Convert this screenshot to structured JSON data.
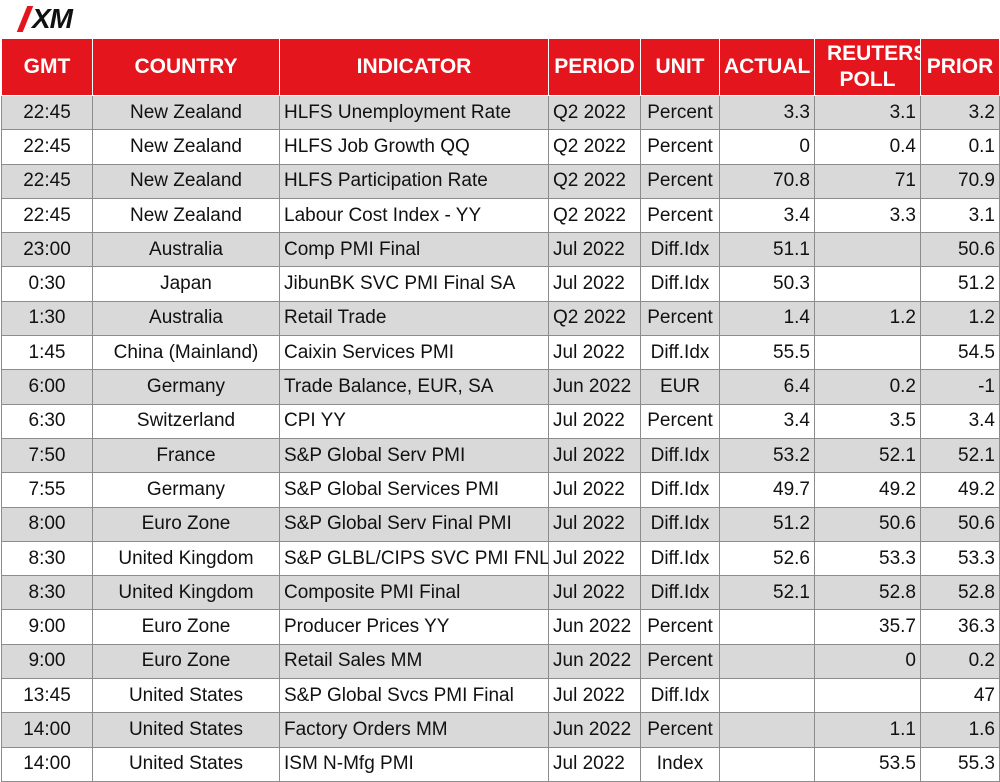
{
  "brand": {
    "logo_text": "XM",
    "logo_color": "#e4151c"
  },
  "table": {
    "header_color": "#e4151c",
    "columns": [
      "GMT",
      "COUNTRY",
      "INDICATOR",
      "PERIOD",
      "UNIT",
      "ACTUAL",
      "REUTERS POLL",
      "PRIOR"
    ],
    "rows": [
      [
        "22:45",
        "New Zealand",
        "HLFS Unemployment Rate",
        "Q2 2022",
        "Percent",
        "3.3",
        "3.1",
        "3.2"
      ],
      [
        "22:45",
        "New Zealand",
        "HLFS Job Growth QQ",
        "Q2 2022",
        "Percent",
        "0",
        "0.4",
        "0.1"
      ],
      [
        "22:45",
        "New Zealand",
        "HLFS Participation Rate",
        "Q2 2022",
        "Percent",
        "70.8",
        "71",
        "70.9"
      ],
      [
        "22:45",
        "New Zealand",
        "Labour Cost Index - YY",
        "Q2 2022",
        "Percent",
        "3.4",
        "3.3",
        "3.1"
      ],
      [
        "23:00",
        "Australia",
        "Comp PMI Final",
        "Jul 2022",
        "Diff.Idx",
        "51.1",
        "",
        "50.6"
      ],
      [
        "0:30",
        "Japan",
        "JibunBK SVC PMI Final SA",
        "Jul 2022",
        "Diff.Idx",
        "50.3",
        "",
        "51.2"
      ],
      [
        "1:30",
        "Australia",
        "Retail Trade",
        "Q2 2022",
        "Percent",
        "1.4",
        "1.2",
        "1.2"
      ],
      [
        "1:45",
        "China (Mainland)",
        "Caixin Services PMI",
        "Jul 2022",
        "Diff.Idx",
        "55.5",
        "",
        "54.5"
      ],
      [
        "6:00",
        "Germany",
        "Trade Balance, EUR, SA",
        "Jun 2022",
        "EUR",
        "6.4",
        "0.2",
        "-1"
      ],
      [
        "6:30",
        "Switzerland",
        "CPI YY",
        "Jul 2022",
        "Percent",
        "3.4",
        "3.5",
        "3.4"
      ],
      [
        "7:50",
        "France",
        "S&P Global Serv PMI",
        "Jul 2022",
        "Diff.Idx",
        "53.2",
        "52.1",
        "52.1"
      ],
      [
        "7:55",
        "Germany",
        "S&P Global Services PMI",
        "Jul 2022",
        "Diff.Idx",
        "49.7",
        "49.2",
        "49.2"
      ],
      [
        "8:00",
        "Euro Zone",
        "S&P Global Serv Final PMI",
        "Jul 2022",
        "Diff.Idx",
        "51.2",
        "50.6",
        "50.6"
      ],
      [
        "8:30",
        "United Kingdom",
        "S&P GLBL/CIPS SVC PMI FNL",
        "Jul 2022",
        "Diff.Idx",
        "52.6",
        "53.3",
        "53.3"
      ],
      [
        "8:30",
        "United Kingdom",
        "Composite PMI Final",
        "Jul 2022",
        "Diff.Idx",
        "52.1",
        "52.8",
        "52.8"
      ],
      [
        "9:00",
        "Euro Zone",
        "Producer Prices YY",
        "Jun 2022",
        "Percent",
        "",
        "35.7",
        "36.3"
      ],
      [
        "9:00",
        "Euro Zone",
        "Retail Sales MM",
        "Jun 2022",
        "Percent",
        "",
        "0",
        "0.2"
      ],
      [
        "13:45",
        "United States",
        "S&P Global Svcs PMI Final",
        "Jul 2022",
        "Diff.Idx",
        "",
        "",
        "47"
      ],
      [
        "14:00",
        "United States",
        "Factory Orders MM",
        "Jun 2022",
        "Percent",
        "",
        "1.1",
        "1.6"
      ],
      [
        "14:00",
        "United States",
        "ISM N-Mfg PMI",
        "Jul 2022",
        "Index",
        "",
        "53.5",
        "55.3"
      ]
    ]
  }
}
